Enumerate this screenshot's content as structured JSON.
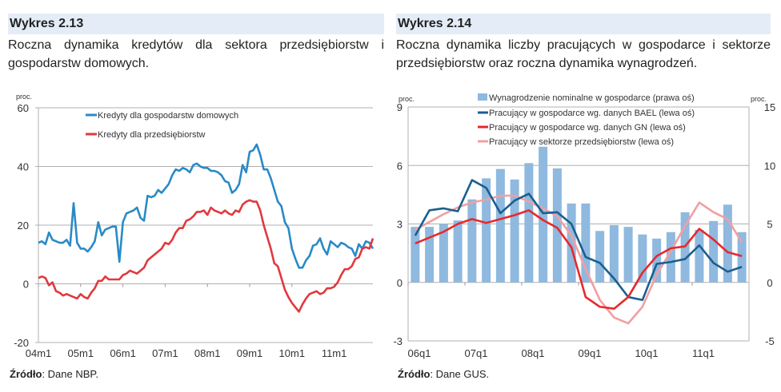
{
  "left": {
    "header": "Wykres 2.13",
    "description": "Roczna dynamika kredytów dla sektora przedsiębiorstw i gospodarstw domowych.",
    "source_label": "Źródło",
    "source_text": ": Dane NBP."
  },
  "right": {
    "header": "Wykres 2.14",
    "description": "Roczna dynamika liczby pracujących w gospodarce i sektorze przedsiębiorstw oraz roczna dynamika wynagrodzeń.",
    "source_label": "Źródło",
    "source_text": ": Dane GUS."
  },
  "chart_data": [
    {
      "type": "line",
      "ylabel": "proc.",
      "ylim": [
        -20,
        60
      ],
      "yticks": [
        "60",
        "40",
        "20",
        "0",
        "-20"
      ],
      "ytick_values": [
        60,
        40,
        20,
        0,
        -20
      ],
      "xticks": [
        "04m1",
        "05m1",
        "06m1",
        "07m1",
        "08m1",
        "09m1",
        "10m1",
        "11m1"
      ],
      "grid": true,
      "legend": "top-center",
      "series": [
        {
          "name": "Kredyty dla gospodarstw domowych",
          "color": "#2a8ac7",
          "values": [
            14,
            14.5,
            13.5,
            17.5,
            15,
            14.5,
            14,
            14,
            15,
            13,
            27.5,
            14,
            12,
            12,
            11,
            12.5,
            14.5,
            21,
            16.5,
            18.5,
            19,
            19.5,
            19.5,
            7.5,
            21,
            24,
            24.5,
            25,
            26,
            22.5,
            21.5,
            30,
            29.5,
            30,
            32,
            31,
            32.5,
            34,
            37,
            39,
            38.5,
            39.5,
            39,
            38,
            40.5,
            41,
            40,
            39.5,
            39.5,
            38.5,
            38.5,
            38,
            37,
            35,
            34.5,
            31,
            32,
            34,
            40.5,
            38,
            45,
            45.5,
            47.5,
            44,
            39,
            39,
            36,
            32,
            28,
            26.5,
            21,
            19,
            12,
            8.5,
            5.5,
            5.5,
            8,
            9.5,
            13,
            13.5,
            15.5,
            12,
            10,
            14.5,
            13.5,
            12.5,
            14,
            13.5,
            12.5,
            12,
            9.5,
            13.5,
            12,
            14.5,
            14,
            12
          ]
        },
        {
          "name": "Kredyty dla przedsiębiorstw",
          "color": "#e0393e",
          "values": [
            2,
            2.5,
            2,
            -0.5,
            0.5,
            -2.5,
            -3,
            -4,
            -3.5,
            -4,
            -4.5,
            -5,
            -3.5,
            -4.5,
            -5,
            -3,
            -1.5,
            1,
            1,
            2.5,
            1.5,
            1.5,
            1.5,
            1.5,
            3,
            3.5,
            4.5,
            4,
            3.5,
            4.5,
            5.5,
            8,
            9,
            10,
            11,
            12,
            14,
            13.5,
            15,
            17.5,
            19,
            19,
            21.5,
            22,
            23,
            24.5,
            24.5,
            25,
            23.5,
            26,
            25,
            24.5,
            24,
            25,
            24,
            23.5,
            25,
            24.5,
            27,
            28,
            28.5,
            28,
            28,
            25,
            20,
            16,
            12,
            7,
            6,
            2,
            -2,
            -4.5,
            -6.5,
            -8,
            -9.5,
            -7,
            -5,
            -3.5,
            -3,
            -2.5,
            -3.5,
            -3,
            -1.5,
            -1.5,
            -1,
            0.5,
            3,
            5,
            5,
            6,
            8.5,
            9,
            12,
            12.5,
            12,
            15.5
          ]
        }
      ]
    },
    {
      "type": "bar+line",
      "ylabel_left": "proc.",
      "ylabel_right": "proc.",
      "ylim_left": [
        -3,
        9
      ],
      "ylim_right": [
        -5,
        15
      ],
      "yticks_left": [
        "9",
        "6",
        "3",
        "0",
        "-3"
      ],
      "ytick_values_left": [
        9,
        6,
        3,
        0,
        -3
      ],
      "yticks_right": [
        "15",
        "10",
        "5",
        "0",
        "-5"
      ],
      "xticks": [
        "06q1",
        "07q1",
        "08q1",
        "09q1",
        "10q1",
        "11q1"
      ],
      "grid": true,
      "legend": "top-center",
      "bars": {
        "name": "Wynagrodzenie nominalne w gospodarce (prawa oś)",
        "color": "#8fb9df",
        "axis": "right",
        "values": [
          4.75,
          4.75,
          5.0,
          5.3,
          7.1,
          8.9,
          9.7,
          8.8,
          10.2,
          11.6,
          9.75,
          6.75,
          6.75,
          4.4,
          4.9,
          4.75,
          4.1,
          3.75,
          4.3,
          6.0,
          4.5,
          5.25,
          6.65,
          4.3
        ]
      },
      "series": [
        {
          "name": "Pracujący w gospodarce wg. danych BAEL (lewa oś)",
          "color": "#1a5f8f",
          "axis": "left",
          "values": [
            2.4,
            3.7,
            3.8,
            3.65,
            5.25,
            4.85,
            3.55,
            4.2,
            4.55,
            3.55,
            3.6,
            3.0,
            1.3,
            1.0,
            0.2,
            -0.75,
            -0.9,
            0.95,
            1.05,
            1.2,
            1.9,
            1.0,
            0.55,
            0.8
          ]
        },
        {
          "name": "Pracujący w gospodarce wg. danych GN (lewa oś)",
          "color": "#e8282c",
          "axis": "left",
          "values": [
            2.0,
            2.3,
            2.6,
            3.0,
            3.25,
            3.05,
            3.25,
            3.45,
            3.7,
            3.2,
            2.8,
            1.8,
            -0.75,
            -1.25,
            -1.35,
            -0.75,
            0.5,
            1.35,
            1.75,
            1.85,
            2.75,
            2.2,
            1.55,
            1.35
          ]
        },
        {
          "name": "Pracujący w sektorze przedsiębiorstw (lewa oś)",
          "color": "#f0a0a2",
          "axis": "left",
          "values": [
            2.7,
            3.1,
            3.5,
            3.85,
            4.1,
            4.25,
            4.45,
            4.45,
            4.15,
            3.8,
            3.4,
            2.4,
            0.7,
            -0.9,
            -1.8,
            -2.1,
            -1.25,
            0.4,
            1.6,
            2.9,
            4.1,
            3.6,
            3.25,
            2.05
          ]
        }
      ]
    }
  ]
}
